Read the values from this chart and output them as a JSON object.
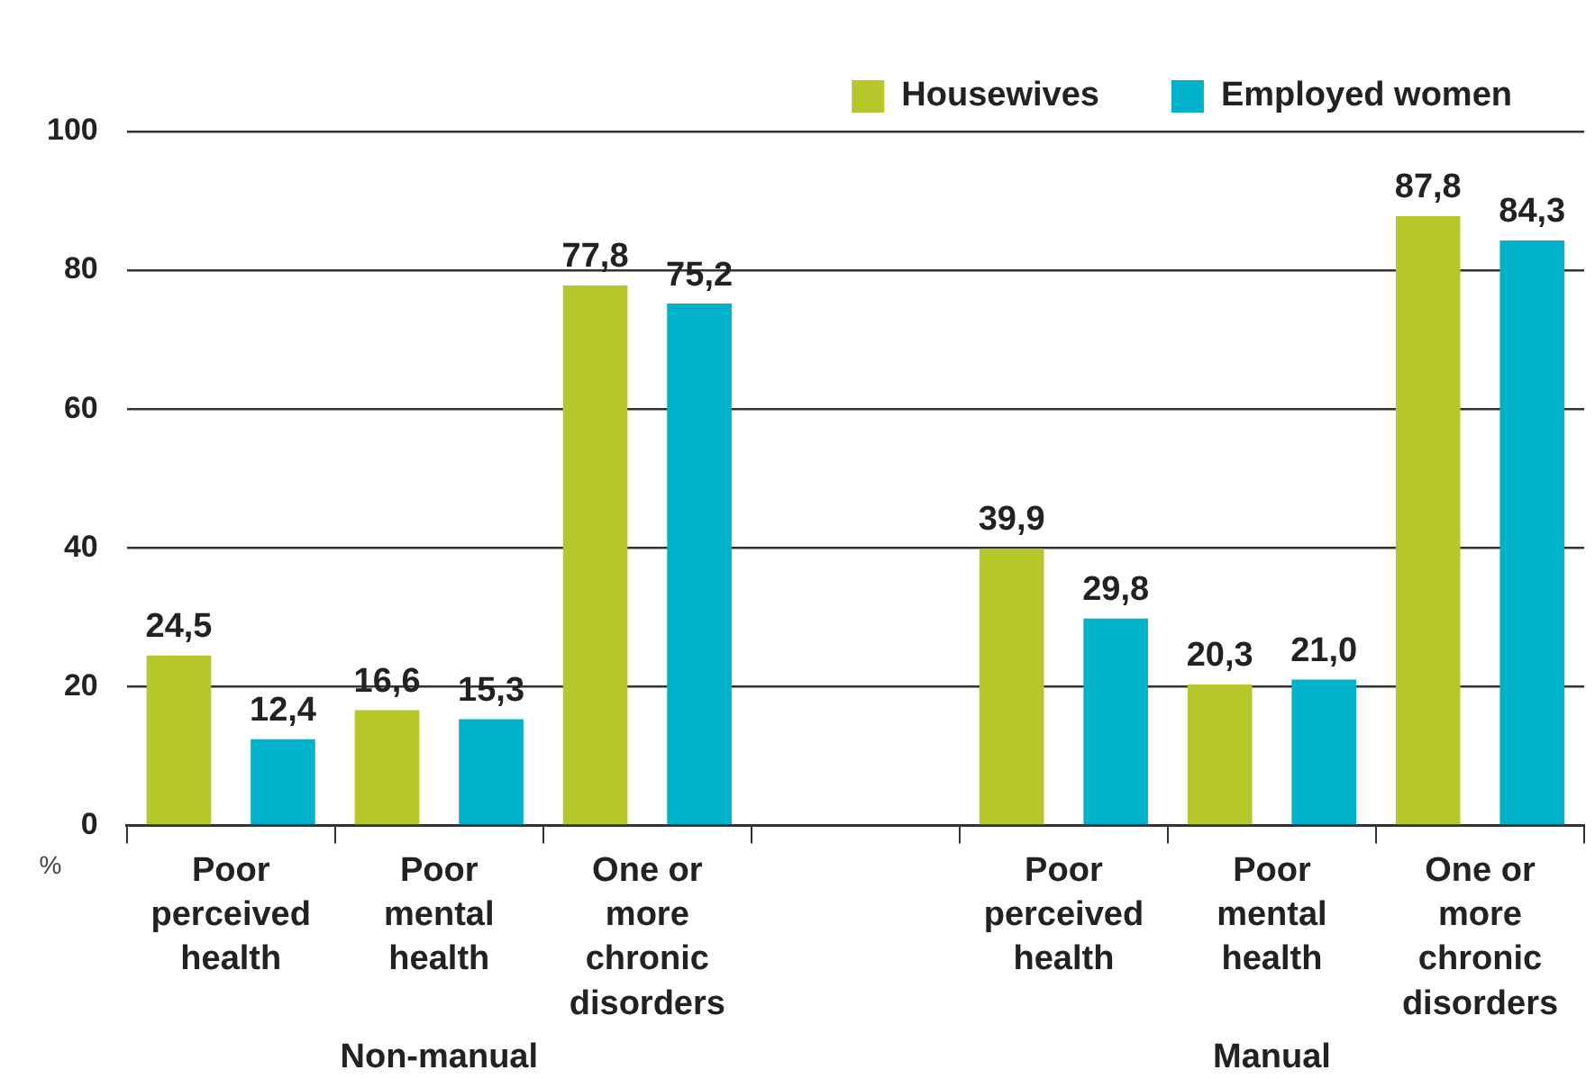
{
  "chart_data": {
    "type": "bar",
    "ylabel": "%",
    "categories": [
      "Poor perceived health",
      "Poor mental health",
      "One or more chronic disorders",
      null,
      "Poor perceived health",
      "Poor mental health",
      "One or more chronic disorders"
    ],
    "series": [
      {
        "name": "Housewives",
        "color": "#b5c72a",
        "values": [
          24.5,
          16.6,
          77.8,
          null,
          39.9,
          20.3,
          87.8
        ]
      },
      {
        "name": "Employed women",
        "color": "#00b2c9",
        "values": [
          12.4,
          15.3,
          75.2,
          null,
          29.8,
          21.0,
          84.3
        ]
      }
    ],
    "value_labels": [
      [
        "24,5",
        "16,6",
        "77,8",
        null,
        "39,9",
        "20,3",
        "87,8"
      ],
      [
        "12,4",
        "15,3",
        "75,2",
        null,
        "29,8",
        "21,0",
        "84,3"
      ]
    ],
    "ylim": [
      0,
      100
    ],
    "yticks": [
      0,
      20,
      40,
      60,
      80,
      100
    ],
    "grid": "y",
    "legend": "top right",
    "annotations": [
      "Non-manual",
      "Manual"
    ]
  }
}
